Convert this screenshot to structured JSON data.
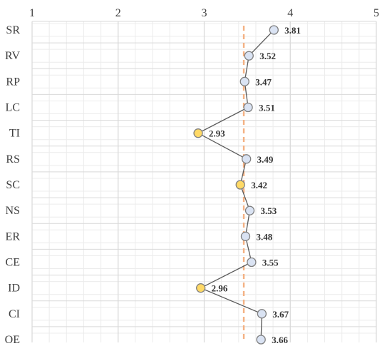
{
  "chart_data": {
    "type": "line",
    "orientation": "horizontal",
    "xlim": [
      1,
      5
    ],
    "x_ticks": [
      "1",
      "2",
      "3",
      "4",
      "5"
    ],
    "x_tick_values": [
      1,
      2,
      3,
      4,
      5
    ],
    "x_axis_position": "top",
    "categories": [
      "SR",
      "RV",
      "RP",
      "LC",
      "TI",
      "RS",
      "SC",
      "NS",
      "ER",
      "CE",
      "ID",
      "CI",
      "OE"
    ],
    "values": [
      3.81,
      3.52,
      3.47,
      3.51,
      2.93,
      3.49,
      3.42,
      3.53,
      3.48,
      3.55,
      2.96,
      3.67,
      3.66
    ],
    "value_labels": [
      "3.81",
      "3.52",
      "3.47",
      "3.51",
      "2.93",
      "3.49",
      "3.42",
      "3.53",
      "3.48",
      "3.55",
      "2.96",
      "3.67",
      "3.66"
    ],
    "highlighted": [
      "TI",
      "SC",
      "ID"
    ],
    "reference_line": {
      "value": 3.46,
      "style": "dashed",
      "color": "#f4b183"
    },
    "grid": true,
    "legend": "none",
    "title": "",
    "xlabel": "",
    "ylabel": ""
  },
  "colors": {
    "marker_default": "#dae3f3",
    "marker_highlight": "#ffd966",
    "marker_stroke": "#7f7f7f",
    "line": "#595959",
    "reference_line": "#f4b183",
    "grid_major": "#d9d9d9",
    "grid_minor": "#ececec",
    "text": "#404040"
  }
}
